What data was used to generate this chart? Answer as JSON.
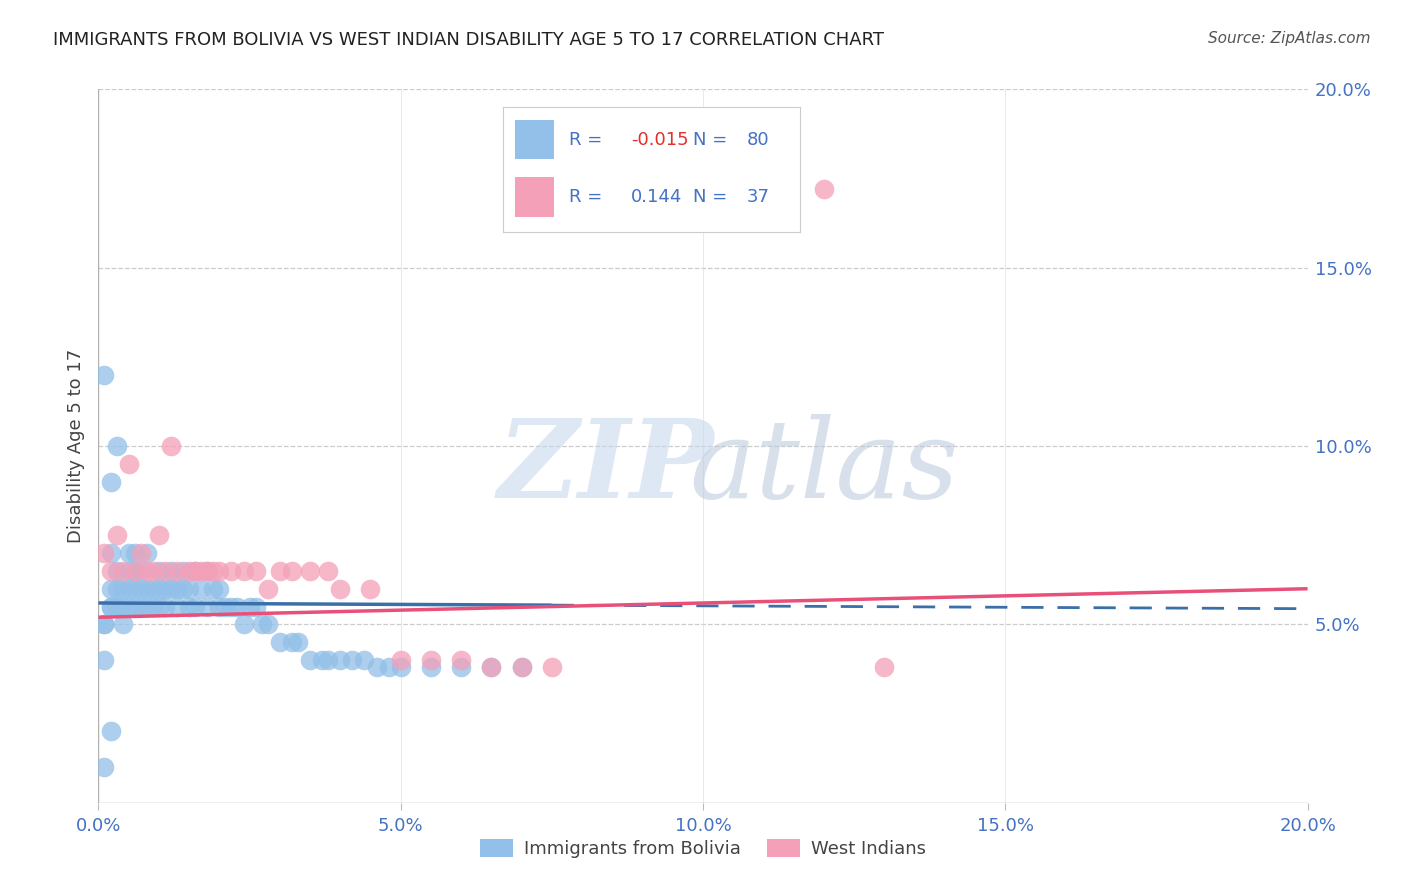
{
  "title": "IMMIGRANTS FROM BOLIVIA VS WEST INDIAN DISABILITY AGE 5 TO 17 CORRELATION CHART",
  "source": "Source: ZipAtlas.com",
  "ylabel": "Disability Age 5 to 17",
  "xlim": [
    0.0,
    0.2
  ],
  "ylim": [
    0.0,
    0.2
  ],
  "bolivia_color": "#92C0E8",
  "westindian_color": "#F4A0B8",
  "bolivia_line_color": "#3A6FA8",
  "westindian_line_color": "#E8507A",
  "bolivia_R": -0.015,
  "bolivia_N": 80,
  "westindian_R": 0.144,
  "westindian_N": 37,
  "legend_label_bolivia": "Immigrants from Bolivia",
  "legend_label_westindian": "West Indians",
  "bolivia_x": [
    0.001,
    0.001,
    0.001,
    0.002,
    0.002,
    0.002,
    0.002,
    0.003,
    0.003,
    0.003,
    0.003,
    0.004,
    0.004,
    0.004,
    0.005,
    0.005,
    0.005,
    0.005,
    0.006,
    0.006,
    0.006,
    0.006,
    0.007,
    0.007,
    0.007,
    0.008,
    0.008,
    0.008,
    0.009,
    0.009,
    0.01,
    0.01,
    0.01,
    0.011,
    0.011,
    0.012,
    0.012,
    0.013,
    0.013,
    0.014,
    0.014,
    0.015,
    0.015,
    0.016,
    0.016,
    0.017,
    0.018,
    0.018,
    0.019,
    0.02,
    0.02,
    0.021,
    0.022,
    0.023,
    0.024,
    0.025,
    0.026,
    0.027,
    0.028,
    0.03,
    0.032,
    0.033,
    0.035,
    0.037,
    0.038,
    0.04,
    0.042,
    0.044,
    0.046,
    0.048,
    0.05,
    0.055,
    0.06,
    0.065,
    0.07,
    0.001,
    0.002,
    0.003,
    0.001,
    0.002
  ],
  "bolivia_y": [
    0.05,
    0.05,
    0.04,
    0.055,
    0.06,
    0.055,
    0.07,
    0.06,
    0.055,
    0.065,
    0.055,
    0.055,
    0.05,
    0.06,
    0.06,
    0.055,
    0.065,
    0.07,
    0.06,
    0.055,
    0.065,
    0.07,
    0.055,
    0.06,
    0.065,
    0.06,
    0.055,
    0.07,
    0.06,
    0.055,
    0.055,
    0.06,
    0.065,
    0.06,
    0.055,
    0.06,
    0.065,
    0.06,
    0.055,
    0.065,
    0.06,
    0.055,
    0.06,
    0.065,
    0.055,
    0.06,
    0.065,
    0.055,
    0.06,
    0.06,
    0.055,
    0.055,
    0.055,
    0.055,
    0.05,
    0.055,
    0.055,
    0.05,
    0.05,
    0.045,
    0.045,
    0.045,
    0.04,
    0.04,
    0.04,
    0.04,
    0.04,
    0.04,
    0.038,
    0.038,
    0.038,
    0.038,
    0.038,
    0.038,
    0.038,
    0.12,
    0.09,
    0.1,
    0.01,
    0.02
  ],
  "westindian_x": [
    0.001,
    0.002,
    0.003,
    0.004,
    0.005,
    0.006,
    0.007,
    0.008,
    0.009,
    0.01,
    0.011,
    0.012,
    0.013,
    0.015,
    0.016,
    0.017,
    0.018,
    0.019,
    0.02,
    0.022,
    0.024,
    0.026,
    0.028,
    0.03,
    0.032,
    0.035,
    0.038,
    0.04,
    0.045,
    0.05,
    0.055,
    0.06,
    0.065,
    0.07,
    0.075,
    0.12,
    0.13
  ],
  "westindian_y": [
    0.07,
    0.065,
    0.075,
    0.065,
    0.095,
    0.065,
    0.07,
    0.065,
    0.065,
    0.075,
    0.065,
    0.1,
    0.065,
    0.065,
    0.065,
    0.065,
    0.065,
    0.065,
    0.065,
    0.065,
    0.065,
    0.065,
    0.06,
    0.065,
    0.065,
    0.065,
    0.065,
    0.06,
    0.06,
    0.04,
    0.04,
    0.04,
    0.038,
    0.038,
    0.038,
    0.172,
    0.038
  ],
  "bolivia_line_x0": 0.0,
  "bolivia_line_x1": 0.075,
  "bolivia_line_dash_x0": 0.075,
  "bolivia_line_dash_x1": 0.2,
  "bolivia_line_y0": 0.056,
  "bolivia_line_slope": -0.008,
  "westindian_line_x0": 0.0,
  "westindian_line_x1": 0.2,
  "westindian_line_y0": 0.052,
  "westindian_line_slope": 0.04
}
